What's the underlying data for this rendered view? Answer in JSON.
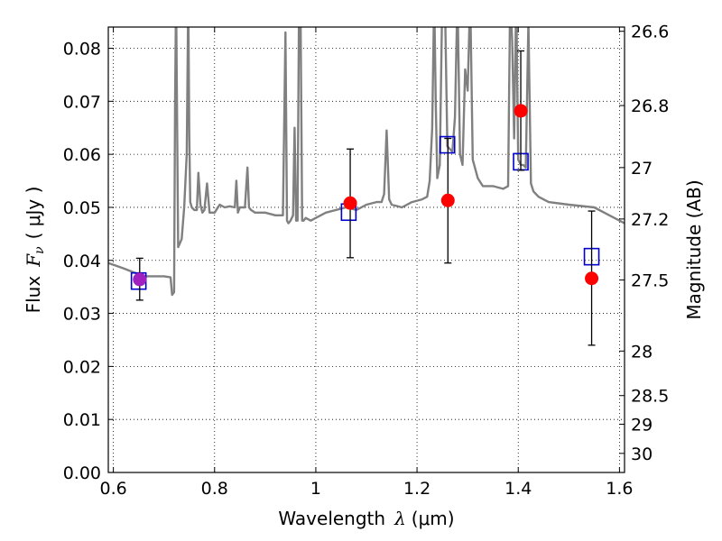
{
  "chart_data": {
    "type": "scatter",
    "xlabel": "Wavelength",
    "xlabel_symbol": "λ",
    "xlabel_unit": "(μm)",
    "ylabel": "Flux",
    "ylabel_symbol": "F",
    "ylabel_subscript": "ν",
    "ylabel_unit": "( μJy )",
    "ylabel_right": "Magnitude (AB)",
    "xlim": [
      0.59,
      1.61
    ],
    "ylim": [
      0.0,
      0.084
    ],
    "grid": true,
    "x_ticks": [
      0.6,
      0.8,
      1.0,
      1.2,
      1.4,
      1.6
    ],
    "x_tick_labels": [
      "0.6",
      "0.8",
      "1",
      "1.2",
      "1.4",
      "1.6"
    ],
    "y_ticks": [
      0.0,
      0.01,
      0.02,
      0.03,
      0.04,
      0.05,
      0.06,
      0.07,
      0.08
    ],
    "y_tick_labels": [
      "0.00",
      "0.01",
      "0.02",
      "0.03",
      "0.04",
      "0.05",
      "0.06",
      "0.07",
      "0.08"
    ],
    "right_ticks": [
      {
        "label": "26.6",
        "flux": 0.0832
      },
      {
        "label": "26.8",
        "flux": 0.0692
      },
      {
        "label": "27",
        "flux": 0.0575
      },
      {
        "label": "27.2",
        "flux": 0.0478
      },
      {
        "label": "27.5",
        "flux": 0.0363
      },
      {
        "label": "28",
        "flux": 0.0229
      },
      {
        "label": "28.5",
        "flux": 0.0145
      },
      {
        "label": "29",
        "flux": 0.0091
      },
      {
        "label": "30",
        "flux": 0.0036
      }
    ],
    "series": [
      {
        "kind": "line",
        "color": "#808080",
        "x": [
          0.59,
          0.62,
          0.66,
          0.7,
          0.713,
          0.716,
          0.72,
          0.722,
          0.724,
          0.728,
          0.735,
          0.74,
          0.745,
          0.748,
          0.75,
          0.752,
          0.755,
          0.76,
          0.765,
          0.768,
          0.772,
          0.776,
          0.78,
          0.785,
          0.79,
          0.8,
          0.81,
          0.82,
          0.83,
          0.84,
          0.843,
          0.846,
          0.85,
          0.86,
          0.865,
          0.868,
          0.872,
          0.88,
          0.9,
          0.92,
          0.935,
          0.94,
          0.943,
          0.946,
          0.95,
          0.955,
          0.958,
          0.961,
          0.964,
          0.967,
          0.97,
          0.973,
          0.976,
          0.98,
          0.99,
          1.0,
          1.02,
          1.04,
          1.06,
          1.08,
          1.1,
          1.12,
          1.13,
          1.135,
          1.14,
          1.145,
          1.15,
          1.17,
          1.19,
          1.21,
          1.22,
          1.225,
          1.23,
          1.234,
          1.237,
          1.24,
          1.245,
          1.25,
          1.255,
          1.26,
          1.265,
          1.27,
          1.275,
          1.28,
          1.285,
          1.29,
          1.295,
          1.3,
          1.305,
          1.31,
          1.32,
          1.33,
          1.35,
          1.37,
          1.38,
          1.384,
          1.388,
          1.392,
          1.396,
          1.4,
          1.405,
          1.41,
          1.415,
          1.42,
          1.425,
          1.43,
          1.44,
          1.46,
          1.5,
          1.55,
          1.58,
          1.61
        ],
        "y": [
          0.0395,
          0.0385,
          0.037,
          0.037,
          0.0368,
          0.0335,
          0.034,
          0.07,
          0.09,
          0.0425,
          0.044,
          0.05,
          0.06,
          0.09,
          0.064,
          0.051,
          0.05,
          0.0495,
          0.0495,
          0.0565,
          0.0505,
          0.049,
          0.0495,
          0.0545,
          0.049,
          0.049,
          0.0505,
          0.05,
          0.0502,
          0.05,
          0.055,
          0.049,
          0.05,
          0.05,
          0.0575,
          0.05,
          0.0495,
          0.049,
          0.049,
          0.0485,
          0.0485,
          0.083,
          0.0475,
          0.047,
          0.0475,
          0.0485,
          0.065,
          0.0475,
          0.0475,
          0.09,
          0.085,
          0.0475,
          0.0475,
          0.048,
          0.0475,
          0.048,
          0.049,
          0.0495,
          0.05,
          0.0495,
          0.0505,
          0.051,
          0.051,
          0.0525,
          0.0645,
          0.0515,
          0.0505,
          0.05,
          0.051,
          0.0515,
          0.052,
          0.055,
          0.065,
          0.09,
          0.07,
          0.0555,
          0.058,
          0.09,
          0.09,
          0.0615,
          0.061,
          0.0605,
          0.067,
          0.09,
          0.06,
          0.058,
          0.076,
          0.072,
          0.09,
          0.059,
          0.0555,
          0.054,
          0.054,
          0.0535,
          0.054,
          0.09,
          0.0815,
          0.063,
          0.09,
          0.059,
          0.058,
          0.058,
          0.0575,
          0.085,
          0.0545,
          0.053,
          0.052,
          0.051,
          0.0505,
          0.05,
          0.0485,
          0.047
        ]
      },
      {
        "kind": "markers",
        "marker": "square-open",
        "color": "#0000cc",
        "x": [
          0.65,
          1.065,
          1.26,
          1.405,
          1.545
        ],
        "y": [
          0.0361,
          0.0491,
          0.0618,
          0.0586,
          0.0407
        ]
      },
      {
        "kind": "markers",
        "marker": "circle",
        "color": "#ff0000",
        "x": [
          1.068,
          1.261,
          1.405,
          1.545
        ],
        "y": [
          0.0508,
          0.0513,
          0.0682,
          0.0366
        ],
        "yerr_low": [
          0.0405,
          0.0395,
          0.057,
          0.024
        ],
        "yerr_high": [
          0.061,
          0.063,
          0.0795,
          0.0493
        ]
      },
      {
        "kind": "markers",
        "marker": "circle",
        "color": "#a020c0",
        "x": [
          0.652
        ],
        "y": [
          0.0364
        ],
        "yerr_low": [
          0.0325
        ],
        "yerr_high": [
          0.0404
        ]
      }
    ]
  }
}
